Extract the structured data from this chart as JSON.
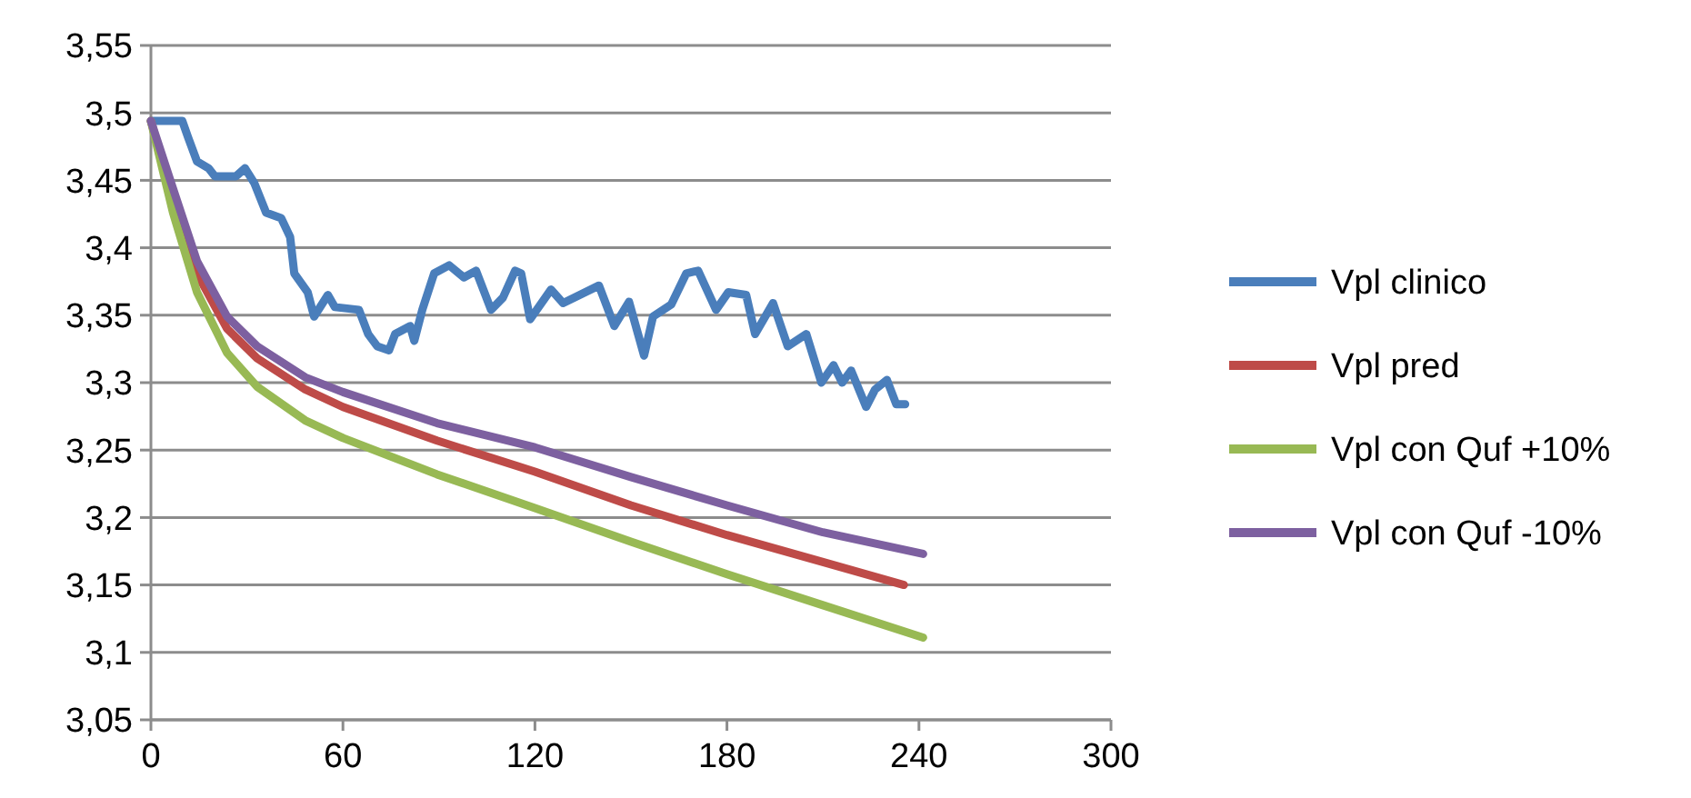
{
  "chart_data": {
    "type": "line",
    "xlim": [
      0,
      300
    ],
    "xticks": [
      0,
      60,
      120,
      180,
      240,
      300
    ],
    "ylim": [
      3.05,
      3.55
    ],
    "yticks": [
      {
        "value": 3.05,
        "label": "3,05"
      },
      {
        "value": 3.1,
        "label": "3,1"
      },
      {
        "value": 3.15,
        "label": "3,15"
      },
      {
        "value": 3.2,
        "label": "3,2"
      },
      {
        "value": 3.25,
        "label": "3,25"
      },
      {
        "value": 3.3,
        "label": "3,3"
      },
      {
        "value": 3.35,
        "label": "3,35"
      },
      {
        "value": 3.4,
        "label": "3,4"
      },
      {
        "value": 3.45,
        "label": "3,45"
      },
      {
        "value": 3.5,
        "label": "3,5"
      },
      {
        "value": 3.55,
        "label": "3,55"
      }
    ],
    "grid": "y",
    "legend": "right",
    "marker": "none",
    "line_style": "solid",
    "series": [
      {
        "name": "Vpl clinico",
        "color": "#4a7ebb",
        "x": [
          0,
          9.8,
          11.6,
          14.4,
          18,
          20,
          26.6,
          29.4,
          32.3,
          36,
          40.7,
          43.5,
          44.8,
          49,
          51,
          55.3,
          57.5,
          65,
          67.9,
          70.7,
          74.4,
          76.3,
          81,
          82.3,
          84.8,
          88.5,
          93.2,
          97.8,
          101.6,
          106.3,
          110,
          113.8,
          115.7,
          118.5,
          125,
          128.8,
          140,
          144.8,
          149.4,
          154.1,
          156.9,
          162.6,
          167.3,
          171,
          176.6,
          180.4,
          186,
          188.8,
          194.4,
          199,
          204.8,
          209.5,
          213.3,
          216,
          218.8,
          223.5,
          226.3,
          230,
          232.9,
          235.7
        ],
        "values": [
          3.494,
          3.494,
          3.482,
          3.464,
          3.459,
          3.453,
          3.453,
          3.459,
          3.448,
          3.426,
          3.422,
          3.408,
          3.381,
          3.367,
          3.349,
          3.365,
          3.356,
          3.354,
          3.336,
          3.327,
          3.324,
          3.336,
          3.342,
          3.331,
          3.354,
          3.381,
          3.387,
          3.378,
          3.383,
          3.354,
          3.363,
          3.383,
          3.381,
          3.347,
          3.369,
          3.359,
          3.372,
          3.342,
          3.36,
          3.32,
          3.349,
          3.358,
          3.381,
          3.383,
          3.354,
          3.367,
          3.365,
          3.336,
          3.359,
          3.327,
          3.336,
          3.3,
          3.313,
          3.3,
          3.309,
          3.282,
          3.295,
          3.302,
          3.284,
          3.284
        ]
      },
      {
        "name": "Vpl pred",
        "color": "#be4b48",
        "x": [
          0,
          6.9,
          14.4,
          23.8,
          33.2,
          48.2,
          60,
          89.4,
          120,
          150,
          180,
          210,
          235.3
        ],
        "values": [
          3.494,
          3.435,
          3.381,
          3.34,
          3.318,
          3.295,
          3.282,
          3.257,
          3.234,
          3.209,
          3.187,
          3.167,
          3.15
        ]
      },
      {
        "name": "Vpl con Quf +10%",
        "color": "#98b954",
        "x": [
          0,
          6.9,
          14.4,
          23.8,
          33.2,
          48.2,
          60,
          89.4,
          120,
          150,
          180,
          210,
          241.3
        ],
        "values": [
          3.494,
          3.426,
          3.367,
          3.322,
          3.297,
          3.272,
          3.259,
          3.232,
          3.207,
          3.182,
          3.158,
          3.135,
          3.111
        ]
      },
      {
        "name": "Vpl con Quf -10%",
        "color": "#7d60a0",
        "x": [
          0,
          6.9,
          14.4,
          23.8,
          33.2,
          48.2,
          60,
          89.4,
          120,
          150,
          180,
          210,
          241.3
        ],
        "values": [
          3.494,
          3.444,
          3.39,
          3.349,
          3.327,
          3.304,
          3.293,
          3.27,
          3.252,
          3.23,
          3.209,
          3.189,
          3.173
        ]
      }
    ]
  }
}
